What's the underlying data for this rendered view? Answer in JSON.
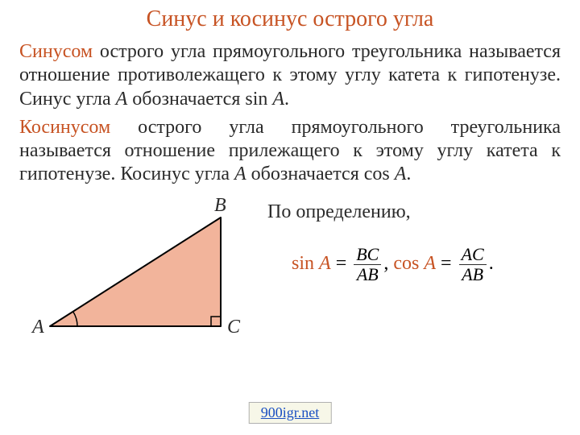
{
  "title": "Синус и косинус острого угла",
  "para1": {
    "term": "Синусом",
    "rest": " острого угла прямоугольного треугольника называется отношение противолежащего к этому углу катета к гипотенузе. Синус угла ",
    "var1": "A",
    "mid": " обозначается sin ",
    "var2": "A",
    "end": "."
  },
  "para2": {
    "term": "Косинусом",
    "rest": " острого угла прямоугольного треугольника называется отношение прилежащего к этому углу катета к гипотенузе. Косинус угла ",
    "var1": "A",
    "mid": " обозначается cos ",
    "var2": "A",
    "end": "."
  },
  "intro": "По определению,",
  "labels": {
    "A": "A",
    "B": "B",
    "C": "C"
  },
  "formula": {
    "sin": "sin ",
    "cos": "cos ",
    "A": "A",
    "eq": " = ",
    "BC": "BC",
    "AB": "AB",
    "AC": "AC",
    "comma": ",   ",
    "period": "."
  },
  "triangle": {
    "fill": "#f2b49b",
    "stroke": "#000000",
    "stroke_width": 2,
    "A": [
      38,
      155
    ],
    "B": [
      250,
      20
    ],
    "C": [
      250,
      155
    ],
    "arc_r": 34,
    "sq": 12
  },
  "footer_link": "900igr.net"
}
